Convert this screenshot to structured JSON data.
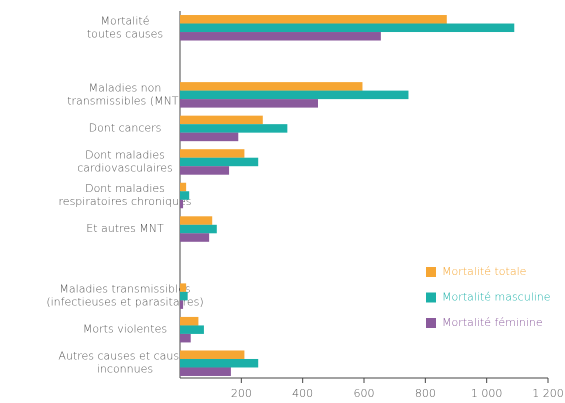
{
  "chart_data": {
    "type": "bar",
    "orientation": "horizontal",
    "categories": [
      [
        "Mortalité",
        "toutes causes"
      ],
      null,
      [
        "Maladies non",
        "transmissibles (MNT)"
      ],
      [
        "Dont cancers"
      ],
      [
        "Dont maladies",
        "cardiovasculaires"
      ],
      [
        "Dont maladies",
        "respiratoires chroniques"
      ],
      [
        "Et autres MNT"
      ],
      null,
      [
        "Maladies transmissibles",
        "(infectieuses et parasitaires)"
      ],
      [
        "Morts violentes"
      ],
      [
        "Autres causes et causes",
        "inconnues"
      ]
    ],
    "series": [
      {
        "name": "Mortalité totale",
        "color": "#f6a633",
        "values": [
          870,
          null,
          595,
          270,
          210,
          20,
          105,
          null,
          20,
          60,
          210
        ]
      },
      {
        "name": "Mortalité masculine",
        "color": "#1bb0a8",
        "values": [
          1090,
          null,
          745,
          350,
          255,
          30,
          120,
          null,
          25,
          78,
          255
        ]
      },
      {
        "name": "Mortalité féminine",
        "color": "#8a5a9c",
        "values": [
          655,
          null,
          450,
          190,
          160,
          10,
          95,
          null,
          10,
          35,
          166
        ]
      }
    ],
    "xlim": [
      0,
      1200
    ],
    "xticks": [
      200,
      400,
      600,
      800,
      {
        "value": 1000,
        "label": "1 000"
      },
      {
        "value": 1200,
        "label": "1 200"
      }
    ],
    "legend": "lower right"
  }
}
